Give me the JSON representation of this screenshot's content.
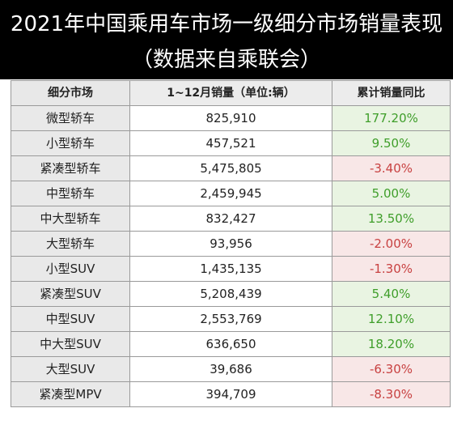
{
  "title": {
    "line1": "2021年中国乘用车市场一级细分市场销量表现",
    "line2": "（数据来自乘联会）"
  },
  "table": {
    "headers": {
      "segment": "细分市场",
      "sales": "1~12月销量（单位:辆）",
      "yoy": "累计销量同比"
    },
    "rows": [
      {
        "segment": "微型轿车",
        "sales": "825,910",
        "yoy": "177.20%",
        "trend": "up"
      },
      {
        "segment": "小型轿车",
        "sales": "457,521",
        "yoy": "9.50%",
        "trend": "up"
      },
      {
        "segment": "紧凑型轿车",
        "sales": "5,475,805",
        "yoy": "-3.40%",
        "trend": "down"
      },
      {
        "segment": "中型轿车",
        "sales": "2,459,945",
        "yoy": "5.00%",
        "trend": "up"
      },
      {
        "segment": "中大型轿车",
        "sales": "832,427",
        "yoy": "13.50%",
        "trend": "up"
      },
      {
        "segment": "大型轿车",
        "sales": "93,956",
        "yoy": "-2.00%",
        "trend": "down"
      },
      {
        "segment": "小型SUV",
        "sales": "1,435,135",
        "yoy": "-1.30%",
        "trend": "down"
      },
      {
        "segment": "紧凑型SUV",
        "sales": "5,208,439",
        "yoy": "5.40%",
        "trend": "up"
      },
      {
        "segment": "中型SUV",
        "sales": "2,553,769",
        "yoy": "12.10%",
        "trend": "up"
      },
      {
        "segment": "中大型SUV",
        "sales": "636,650",
        "yoy": "18.20%",
        "trend": "up"
      },
      {
        "segment": "大型SUV",
        "sales": "39,686",
        "yoy": "-6.30%",
        "trend": "down"
      },
      {
        "segment": "紧凑型MPV",
        "sales": "394,709",
        "yoy": "-8.30%",
        "trend": "down"
      }
    ]
  },
  "colors": {
    "header_bg": "#000000",
    "positive_text": "#3f9e2a",
    "negative_text": "#c84141",
    "positive_bg": "#e9f4e2",
    "negative_bg": "#f8e7e7"
  }
}
